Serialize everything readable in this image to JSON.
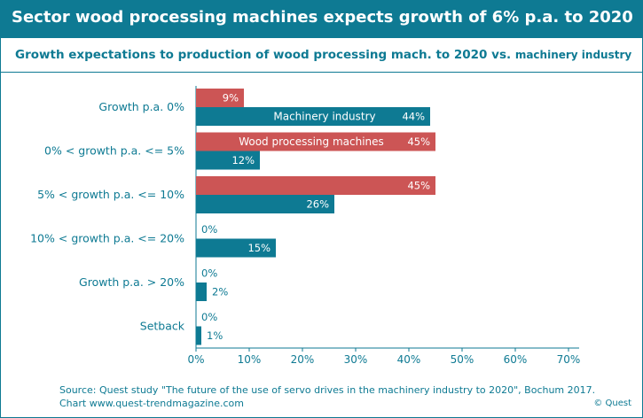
{
  "header": {
    "title": "Sector wood processing machines expects growth of 6% p.a. to 2020"
  },
  "subtitle": {
    "main": "Growth expectations to production of wood processing mach. to 2020",
    "vs": "vs.",
    "tail": "machinery industry"
  },
  "colors": {
    "brand": "#0e7a93",
    "wood_processing": "#cc5555",
    "machinery_industry": "#0e7a93"
  },
  "chart_data": {
    "type": "bar",
    "orientation": "horizontal",
    "categories": [
      "Growth p.a. 0%",
      "0% < growth p.a. <= 5%",
      "5% < growth p.a. <= 10%",
      "10% < growth p.a. <= 20%",
      "Growth p.a. > 20%",
      "Setback"
    ],
    "series": [
      {
        "name": "Wood processing machines",
        "values": [
          9,
          45,
          45,
          0,
          0,
          0
        ],
        "color": "#cc5555"
      },
      {
        "name": "Machinery industry",
        "values": [
          44,
          12,
          26,
          15,
          2,
          1
        ],
        "color": "#0e7a93"
      }
    ],
    "x_ticks": [
      "0%",
      "10%",
      "20%",
      "30%",
      "40%",
      "50%",
      "60%",
      "70%"
    ],
    "xlim": [
      0,
      70
    ],
    "grid": false,
    "legend": "inside bars"
  },
  "footer": {
    "source": "Source: Quest study \"The future of the use of servo drives in the machinery industry to 2020\", Bochum 2017.",
    "link": "Chart www.quest-trendmagazine.com",
    "copyright": "© Quest"
  }
}
